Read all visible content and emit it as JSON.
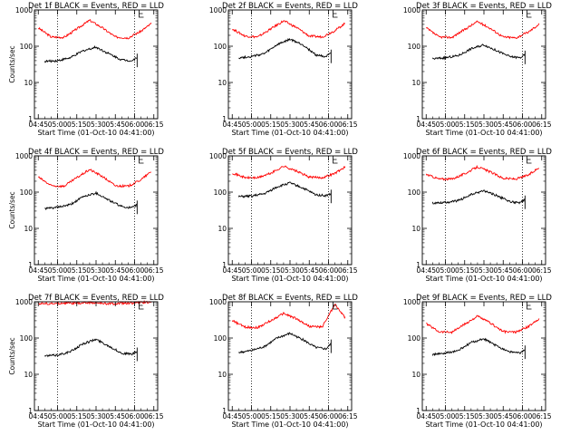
{
  "colors": {
    "events": "#000000",
    "lld": "#ff0000",
    "axis": "#000000",
    "background": "#ffffff"
  },
  "chart_data": [
    {
      "type": "line",
      "title": "Det 1f BLACK = Events, RED = LLD",
      "xlabel": "Start Time (01-Oct-10 04:41:00)",
      "ylabel": "Counts/sec",
      "yscale": "log",
      "ylim": [
        1,
        1000
      ],
      "x_ticks": [
        "04:45",
        "05:00",
        "05:15",
        "05:30",
        "05:45",
        "06:00",
        "06:15"
      ],
      "y_ticks": [
        "1",
        "10",
        "100",
        "1000"
      ],
      "gap_markers": [
        "05:00",
        "06:00"
      ],
      "series": [
        {
          "role": "lld",
          "x": [
            "04:45",
            "04:55",
            "05:05",
            "05:15",
            "05:25",
            "05:35",
            "05:45",
            "05:55",
            "06:05",
            "06:13"
          ],
          "y": [
            320,
            180,
            175,
            300,
            520,
            320,
            180,
            170,
            260,
            420
          ]
        },
        {
          "role": "events",
          "x": [
            "04:50",
            "05:00",
            "05:10",
            "05:20",
            "05:30",
            "05:40",
            "05:50",
            "05:58",
            "06:02"
          ],
          "y": [
            38,
            40,
            48,
            75,
            95,
            62,
            42,
            40,
            48
          ]
        }
      ]
    },
    {
      "type": "line",
      "title": "Det 2f BLACK = Events, RED = LLD",
      "xlabel": "Start Time (01-Oct-10 04:41:00)",
      "ylabel": "",
      "yscale": "log",
      "ylim": [
        1,
        1000
      ],
      "x_ticks": [
        "04:45",
        "05:00",
        "05:15",
        "05:30",
        "05:45",
        "06:00",
        "06:15"
      ],
      "y_ticks": [
        "1",
        "10",
        "100",
        "1000"
      ],
      "gap_markers": [
        "05:00",
        "06:00"
      ],
      "series": [
        {
          "role": "lld",
          "x": [
            "04:45",
            "04:55",
            "05:05",
            "05:15",
            "05:25",
            "05:35",
            "05:45",
            "05:55",
            "06:05",
            "06:13"
          ],
          "y": [
            300,
            190,
            180,
            300,
            500,
            330,
            190,
            180,
            270,
            430
          ]
        },
        {
          "role": "events",
          "x": [
            "04:50",
            "05:00",
            "05:10",
            "05:20",
            "05:30",
            "05:40",
            "05:50",
            "05:58",
            "06:02"
          ],
          "y": [
            48,
            52,
            62,
            110,
            155,
            110,
            58,
            52,
            62
          ]
        }
      ]
    },
    {
      "type": "line",
      "title": "Det 3f BLACK = Events, RED = LLD",
      "xlabel": "Start Time (01-Oct-10 04:41:00)",
      "ylabel": "",
      "yscale": "log",
      "ylim": [
        1,
        1000
      ],
      "x_ticks": [
        "04:45",
        "05:00",
        "05:15",
        "05:30",
        "05:45",
        "06:00",
        "06:15"
      ],
      "y_ticks": [
        "1",
        "10",
        "100",
        "1000"
      ],
      "gap_markers": [
        "05:00",
        "06:00"
      ],
      "series": [
        {
          "role": "lld",
          "x": [
            "04:45",
            "04:55",
            "05:05",
            "05:15",
            "05:25",
            "05:35",
            "05:45",
            "05:55",
            "06:05",
            "06:13"
          ],
          "y": [
            320,
            180,
            175,
            290,
            480,
            310,
            180,
            170,
            250,
            410
          ]
        },
        {
          "role": "events",
          "x": [
            "04:50",
            "05:00",
            "05:10",
            "05:20",
            "05:30",
            "05:40",
            "05:50",
            "05:58",
            "06:02"
          ],
          "y": [
            45,
            48,
            55,
            85,
            110,
            75,
            52,
            48,
            58
          ]
        }
      ]
    },
    {
      "type": "line",
      "title": "Det 4f BLACK = Events, RED = LLD",
      "xlabel": "Start Time (01-Oct-10 04:41:00)",
      "ylabel": "Counts/sec",
      "yscale": "log",
      "ylim": [
        1,
        1000
      ],
      "x_ticks": [
        "04:45",
        "05:00",
        "05:15",
        "05:30",
        "05:45",
        "06:00",
        "06:15"
      ],
      "y_ticks": [
        "1",
        "10",
        "100",
        "1000"
      ],
      "gap_markers": [
        "05:00",
        "06:00"
      ],
      "series": [
        {
          "role": "lld",
          "x": [
            "04:45",
            "04:55",
            "05:05",
            "05:15",
            "05:25",
            "05:35",
            "05:45",
            "05:55",
            "06:05",
            "06:13"
          ],
          "y": [
            260,
            150,
            145,
            250,
            420,
            270,
            150,
            145,
            220,
            370
          ]
        },
        {
          "role": "events",
          "x": [
            "04:50",
            "05:00",
            "05:10",
            "05:20",
            "05:30",
            "05:40",
            "05:50",
            "05:58",
            "06:02"
          ],
          "y": [
            35,
            38,
            45,
            75,
            95,
            60,
            40,
            37,
            45
          ]
        }
      ]
    },
    {
      "type": "line",
      "title": "Det 5f BLACK = Events, RED = LLD",
      "xlabel": "Start Time (01-Oct-10 04:41:00)",
      "ylabel": "",
      "yscale": "log",
      "ylim": [
        1,
        1000
      ],
      "x_ticks": [
        "04:45",
        "05:00",
        "05:15",
        "05:30",
        "05:45",
        "06:00",
        "06:15"
      ],
      "y_ticks": [
        "1",
        "10",
        "100",
        "1000"
      ],
      "gap_markers": [
        "05:00",
        "06:00"
      ],
      "series": [
        {
          "role": "lld",
          "x": [
            "04:45",
            "04:55",
            "05:05",
            "05:15",
            "05:25",
            "05:35",
            "05:45",
            "05:55",
            "06:05",
            "06:13"
          ],
          "y": [
            340,
            250,
            250,
            330,
            520,
            380,
            260,
            250,
            330,
            500
          ]
        },
        {
          "role": "events",
          "x": [
            "04:50",
            "05:00",
            "05:10",
            "05:20",
            "05:30",
            "05:40",
            "05:50",
            "05:58",
            "06:02"
          ],
          "y": [
            75,
            78,
            90,
            140,
            180,
            130,
            85,
            80,
            90
          ]
        }
      ]
    },
    {
      "type": "line",
      "title": "Det 6f BLACK = Events, RED = LLD",
      "xlabel": "Start Time (01-Oct-10 04:41:00)",
      "ylabel": "",
      "yscale": "log",
      "ylim": [
        1,
        1000
      ],
      "x_ticks": [
        "04:45",
        "05:00",
        "05:15",
        "05:30",
        "05:45",
        "06:00",
        "06:15"
      ],
      "y_ticks": [
        "1",
        "10",
        "100",
        "1000"
      ],
      "gap_markers": [
        "05:00",
        "06:00"
      ],
      "series": [
        {
          "role": "lld",
          "x": [
            "04:45",
            "04:55",
            "05:05",
            "05:15",
            "05:25",
            "05:35",
            "05:45",
            "05:55",
            "06:05",
            "06:13"
          ],
          "y": [
            310,
            230,
            230,
            320,
            500,
            360,
            240,
            230,
            300,
            480
          ]
        },
        {
          "role": "events",
          "x": [
            "04:50",
            "05:00",
            "05:10",
            "05:20",
            "05:30",
            "05:40",
            "05:50",
            "05:58",
            "06:02"
          ],
          "y": [
            50,
            52,
            58,
            85,
            110,
            80,
            55,
            50,
            62
          ]
        }
      ]
    },
    {
      "type": "line",
      "title": "Det 7f BLACK = Events, RED = LLD",
      "xlabel": "Start Time (01-Oct-10 04:41:00)",
      "ylabel": "Counts/sec",
      "yscale": "log",
      "ylim": [
        1,
        1000
      ],
      "x_ticks": [
        "04:45",
        "05:00",
        "05:15",
        "05:30",
        "05:45",
        "06:00",
        "06:15"
      ],
      "y_ticks": [
        "1",
        "10",
        "100",
        "1000"
      ],
      "gap_markers": [
        "05:00",
        "06:00"
      ],
      "series": [
        {
          "role": "lld",
          "x": [
            "04:45",
            "04:55",
            "05:05",
            "05:15",
            "05:25",
            "05:35",
            "05:45",
            "05:55",
            "06:05",
            "06:13"
          ],
          "y": [
            900,
            880,
            920,
            900,
            950,
            900,
            880,
            920,
            950,
            1000
          ]
        },
        {
          "role": "events",
          "x": [
            "04:50",
            "05:00",
            "05:10",
            "05:20",
            "05:30",
            "05:40",
            "05:50",
            "05:58",
            "06:02"
          ],
          "y": [
            32,
            34,
            42,
            70,
            92,
            60,
            38,
            36,
            42
          ]
        }
      ]
    },
    {
      "type": "line",
      "title": "Det 8f BLACK = Events, RED = LLD",
      "xlabel": "Start Time (01-Oct-10 04:41:00)",
      "ylabel": "",
      "yscale": "log",
      "ylim": [
        1,
        1000
      ],
      "x_ticks": [
        "04:45",
        "05:00",
        "05:15",
        "05:30",
        "05:45",
        "06:00",
        "06:15"
      ],
      "y_ticks": [
        "1",
        "10",
        "100",
        "1000"
      ],
      "gap_markers": [
        "05:00",
        "06:00"
      ],
      "series": [
        {
          "role": "lld",
          "x": [
            "04:45",
            "04:55",
            "05:05",
            "05:15",
            "05:25",
            "05:35",
            "05:45",
            "05:55",
            "06:05",
            "06:13"
          ],
          "y": [
            300,
            200,
            195,
            300,
            480,
            340,
            210,
            200,
            850,
            360
          ]
        },
        {
          "role": "events",
          "x": [
            "04:50",
            "05:00",
            "05:10",
            "05:20",
            "05:30",
            "05:40",
            "05:50",
            "05:58",
            "06:02"
          ],
          "y": [
            40,
            45,
            58,
            100,
            135,
            90,
            55,
            50,
            70
          ]
        }
      ]
    },
    {
      "type": "line",
      "title": "Det 9f BLACK = Events, RED = LLD",
      "xlabel": "Start Time (01-Oct-10 04:41:00)",
      "ylabel": "",
      "yscale": "log",
      "ylim": [
        1,
        1000
      ],
      "x_ticks": [
        "04:45",
        "05:00",
        "05:15",
        "05:30",
        "05:45",
        "06:00",
        "06:15"
      ],
      "y_ticks": [
        "1",
        "10",
        "100",
        "1000"
      ],
      "gap_markers": [
        "05:00",
        "06:00"
      ],
      "series": [
        {
          "role": "lld",
          "x": [
            "04:45",
            "04:55",
            "05:05",
            "05:15",
            "05:25",
            "05:35",
            "05:45",
            "05:55",
            "06:05",
            "06:13"
          ],
          "y": [
            250,
            150,
            145,
            240,
            400,
            260,
            150,
            145,
            210,
            350
          ]
        },
        {
          "role": "events",
          "x": [
            "04:50",
            "05:00",
            "05:10",
            "05:20",
            "05:30",
            "05:40",
            "05:50",
            "05:58",
            "06:02"
          ],
          "y": [
            35,
            38,
            45,
            75,
            95,
            60,
            42,
            38,
            48
          ]
        }
      ]
    }
  ]
}
